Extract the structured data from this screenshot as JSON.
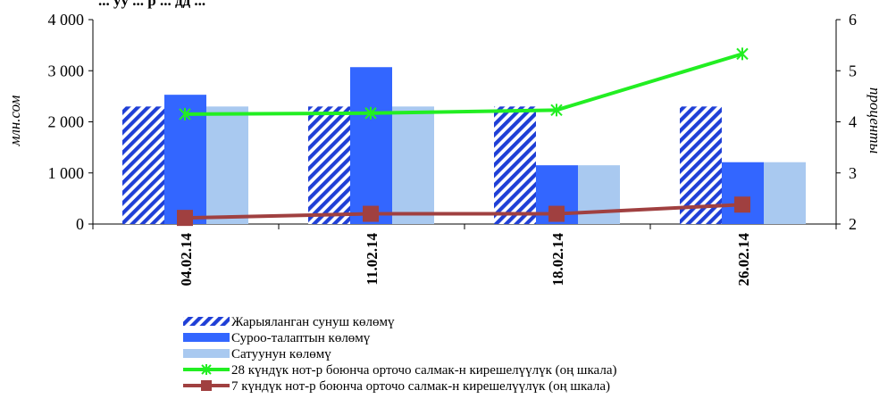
{
  "chart_data": {
    "type": "bar",
    "title": "... уу ... р ... дд ...",
    "categories": [
      "04.02.14",
      "11.02.14",
      "18.02.14",
      "26.02.14"
    ],
    "ylabel": "млн.сом",
    "y2label": "проценты",
    "ylim": [
      0,
      4000
    ],
    "y2lim": [
      2,
      6
    ],
    "y_ticks": [
      "0",
      "1 000",
      "2 000",
      "3 000",
      "4 000"
    ],
    "y2_ticks": [
      "2",
      "3",
      "4",
      "5",
      "6"
    ],
    "series": [
      {
        "name": "Жарыяланган сунуш көлөмү",
        "kind": "bar",
        "axis": "left",
        "values": [
          2300,
          2300,
          2300,
          2300
        ],
        "color": "#1f3fd6",
        "pattern": "diagonal-stripes"
      },
      {
        "name": "Суроо-талаптын көлөмү",
        "kind": "bar",
        "axis": "left",
        "values": [
          2530,
          3070,
          1150,
          1210
        ],
        "color": "#3366ff"
      },
      {
        "name": "Сатуунун көлөмү",
        "kind": "bar",
        "axis": "left",
        "values": [
          2300,
          2300,
          1150,
          1210
        ],
        "color": "#a9c9f0"
      },
      {
        "name": "28 күндүк нот-р боюнча орточо салмак-н кирешелүүлүк (оң шкала)",
        "kind": "line",
        "axis": "right",
        "values": [
          4.15,
          4.17,
          4.23,
          5.33
        ],
        "color": "#22ee22",
        "marker": "asterisk"
      },
      {
        "name": "7 күндүк нот-р боюнча орточо салмак-н кирешелүүлүк (оң шкала)",
        "kind": "line",
        "axis": "right",
        "values": [
          2.12,
          2.2,
          2.2,
          2.38
        ],
        "color": "#a04040",
        "marker": "square"
      }
    ],
    "legend_position": "bottom",
    "grid": false
  }
}
